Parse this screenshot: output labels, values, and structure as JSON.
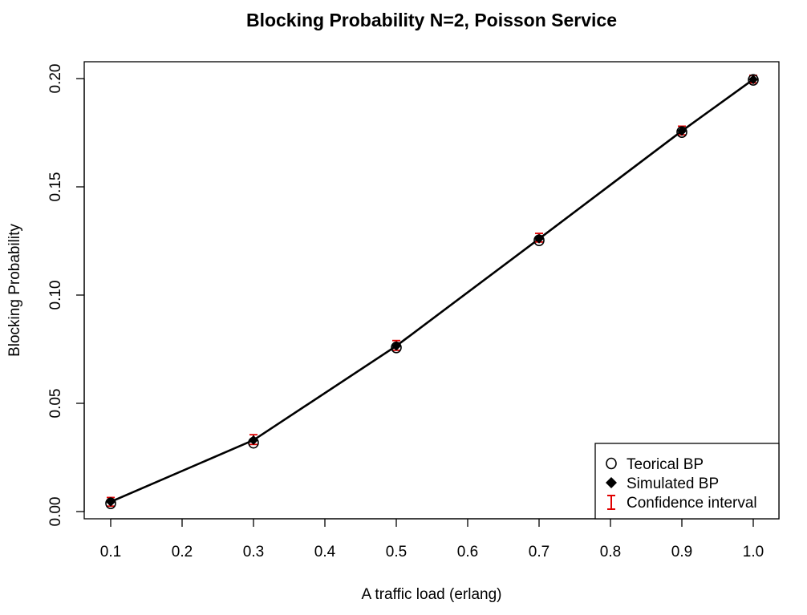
{
  "chart_data": {
    "type": "scatter",
    "title": "Blocking Probability N=2, Poisson Service",
    "xlabel": "A traffic load (erlang)",
    "ylabel": "Blocking Probability",
    "xlim": [
      0.1,
      1.0
    ],
    "ylim": [
      0.0,
      0.2
    ],
    "x_ticks": [
      "0.1",
      "0.2",
      "0.3",
      "0.4",
      "0.5",
      "0.6",
      "0.7",
      "0.8",
      "0.9",
      "1.0"
    ],
    "y_ticks": [
      "0.00",
      "0.05",
      "0.10",
      "0.15",
      "0.20"
    ],
    "x": [
      0.1,
      0.3,
      0.5,
      0.7,
      0.9,
      1.0
    ],
    "series": [
      {
        "name": "Teorical BP",
        "marker": "open-circle",
        "values": [
          0.0038,
          0.0318,
          0.0758,
          0.1253,
          0.1753,
          0.1994
        ]
      },
      {
        "name": "Simulated BP",
        "marker": "filled-diamond",
        "values": [
          0.0045,
          0.033,
          0.0765,
          0.126,
          0.1758,
          0.1996
        ]
      }
    ],
    "confidence_interval": {
      "name": "Confidence interval",
      "lower": [
        0.0025,
        0.031,
        0.0745,
        0.1245,
        0.174,
        0.198
      ],
      "upper": [
        0.0065,
        0.0355,
        0.079,
        0.1285,
        0.178,
        0.2015
      ]
    },
    "line_series": "Simulated BP",
    "legend_position": "bottom-right",
    "grid": false,
    "colors": {
      "ci": "#e00000",
      "points": "#000000",
      "line": "#000000"
    }
  }
}
